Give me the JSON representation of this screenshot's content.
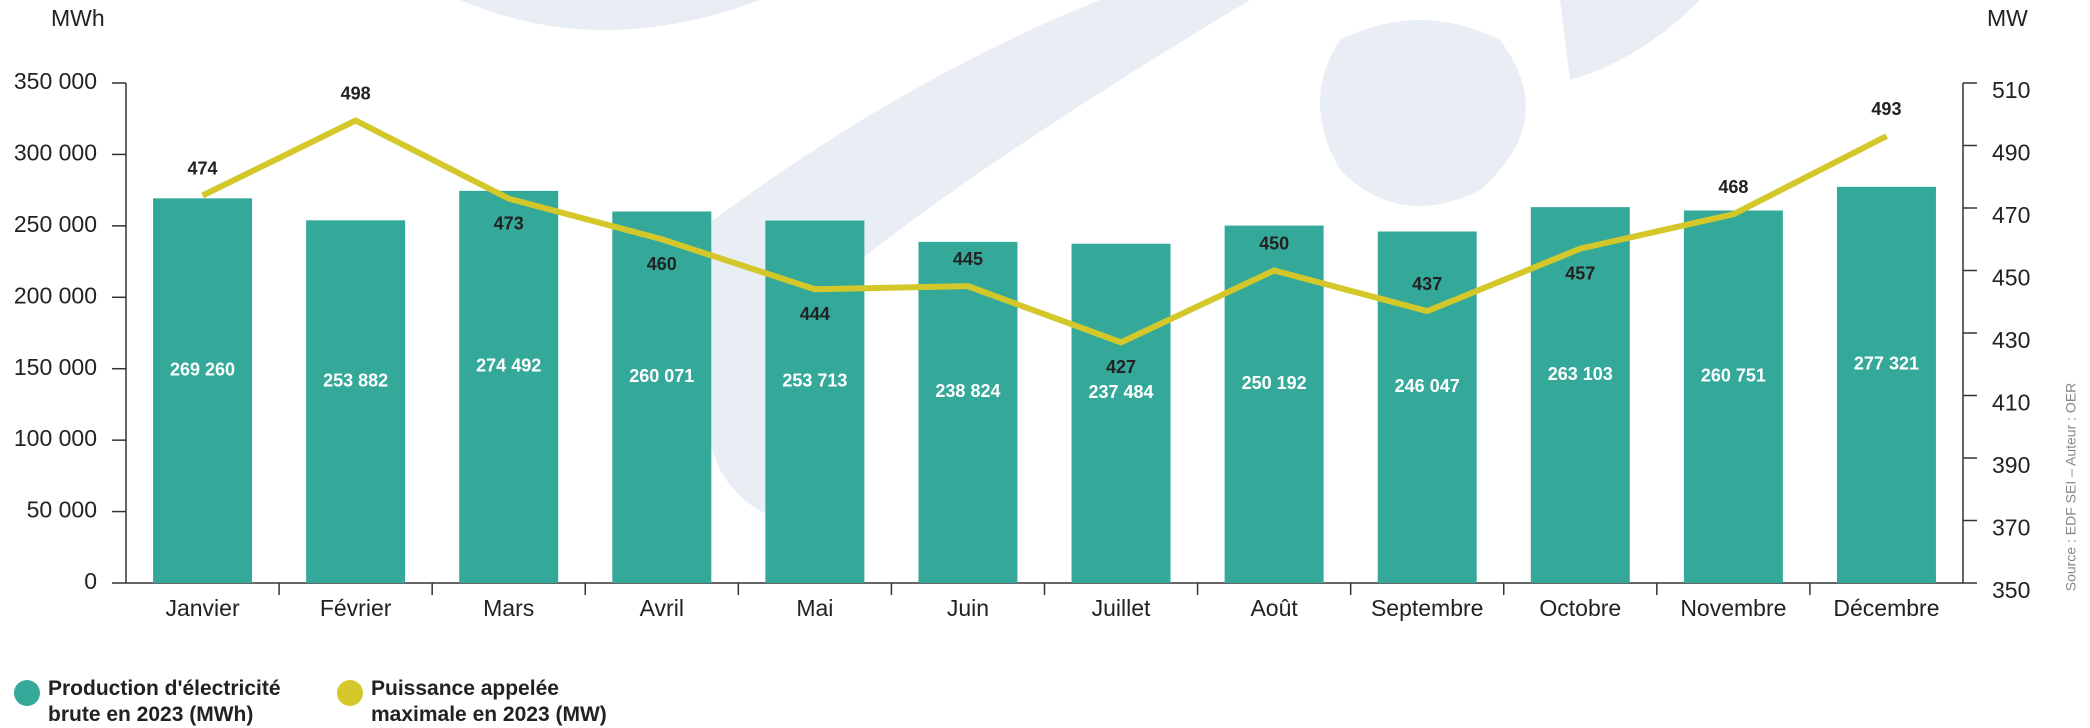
{
  "chart_data": {
    "type": "bar",
    "y_label": "MWh",
    "y2_label": "MW",
    "source": "Source : EDF SEI – Auteur : OER",
    "categories": [
      "Janvier",
      "Février",
      "Mars",
      "Avril",
      "Mai",
      "Juin",
      "Juillet",
      "Août",
      "Septembre",
      "Octobre",
      "Novembre",
      "Décembre"
    ],
    "series": [
      {
        "name": "Production d'électricité brute en 2023 (MWh)",
        "type": "bar",
        "color": "#34a99a",
        "values": [
          269260,
          253882,
          274492,
          260071,
          253713,
          238824,
          237484,
          250192,
          246047,
          263103,
          260751,
          277321
        ],
        "value_labels": [
          "269 260",
          "253 882",
          "274 492",
          "260 071",
          "253 713",
          "238 824",
          "237 484",
          "250 192",
          "246 047",
          "263 103",
          "260 751",
          "277 321"
        ]
      },
      {
        "name": "Puissance appelée maximale en 2023 (MW)",
        "type": "line",
        "axis": "y2",
        "color": "#d4c72a",
        "values": [
          474,
          498,
          473,
          460,
          444,
          445,
          427,
          450,
          437,
          457,
          468,
          493
        ]
      }
    ],
    "ylim": [
      0,
      350000
    ],
    "yticks": [
      {
        "value": 0,
        "label": "0"
      },
      {
        "value": 50000,
        "label": "50 000"
      },
      {
        "value": 100000,
        "label": "100 000"
      },
      {
        "value": 150000,
        "label": "150 000"
      },
      {
        "value": 200000,
        "label": "200 000"
      },
      {
        "value": 250000,
        "label": "250 000"
      },
      {
        "value": 300000,
        "label": "300 000"
      },
      {
        "value": 350000,
        "label": "350 000"
      }
    ],
    "y2lim": [
      350,
      510
    ],
    "y2ticks": [
      350,
      370,
      390,
      410,
      430,
      450,
      470,
      490,
      510
    ]
  }
}
